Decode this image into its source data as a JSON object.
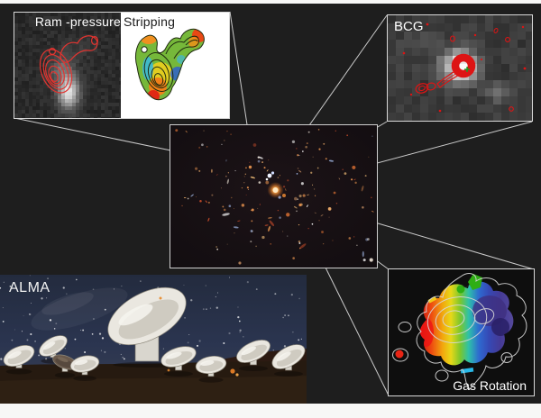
{
  "figure": {
    "ram_panel": {
      "label_part1": "Ram -pressure",
      "label_part2": "Stripping"
    },
    "bcg_panel": {
      "label": "BCG"
    },
    "alma_panel": {
      "label": "ALMA"
    },
    "gas_panel": {
      "label": "Gas Rotation"
    }
  },
  "colors": {
    "background": "#1e1e1e",
    "edge_strip": "#f7f7f6",
    "panel_border": "#d8d8d8",
    "connector_line": "#d4d4d4",
    "contour_red": "#e01c1c",
    "marker_green": "#12a02a",
    "velocity_scale": [
      "#e02814",
      "#f08018",
      "#e8d020",
      "#76b83a",
      "#30b8d8",
      "#3060cc",
      "#453a96"
    ],
    "galaxy_warm": "#d98a4a",
    "galaxy_blue": "#9fb4e0"
  }
}
